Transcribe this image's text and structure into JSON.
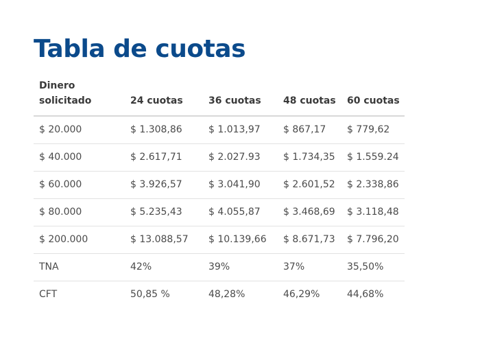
{
  "page": {
    "title": "Tabla de cuotas"
  },
  "table": {
    "headers": [
      "Dinero\nsolicitado",
      "24 cuotas",
      "36 cuotas",
      "48 cuotas",
      "60 cuotas"
    ],
    "rows": [
      [
        "$ 20.000",
        "$ 1.308,86",
        "$ 1.013,97",
        "$ 867,17",
        "$ 779,62"
      ],
      [
        "$ 40.000",
        "$ 2.617,71",
        "$ 2.027.93",
        "$ 1.734,35",
        "$ 1.559.24"
      ],
      [
        "$ 60.000",
        "$ 3.926,57",
        "$ 3.041,90",
        "$ 2.601,52",
        "$ 2.338,86"
      ],
      [
        "$ 80.000",
        "$ 5.235,43",
        "$ 4.055,87",
        "$ 3.468,69",
        "$ 3.118,48"
      ],
      [
        "$ 200.000",
        "$ 13.088,57",
        "$ 10.139,66",
        "$ 8.671,73",
        "$ 7.796,20"
      ],
      [
        "TNA",
        "42%",
        "39%",
        "37%",
        "35,50%"
      ],
      [
        "CFT",
        "50,85 %",
        "48,28%",
        "46,29%",
        "44,68%"
      ]
    ]
  },
  "colors": {
    "title": "#0b4a8b",
    "text": "#4a4a4a"
  }
}
